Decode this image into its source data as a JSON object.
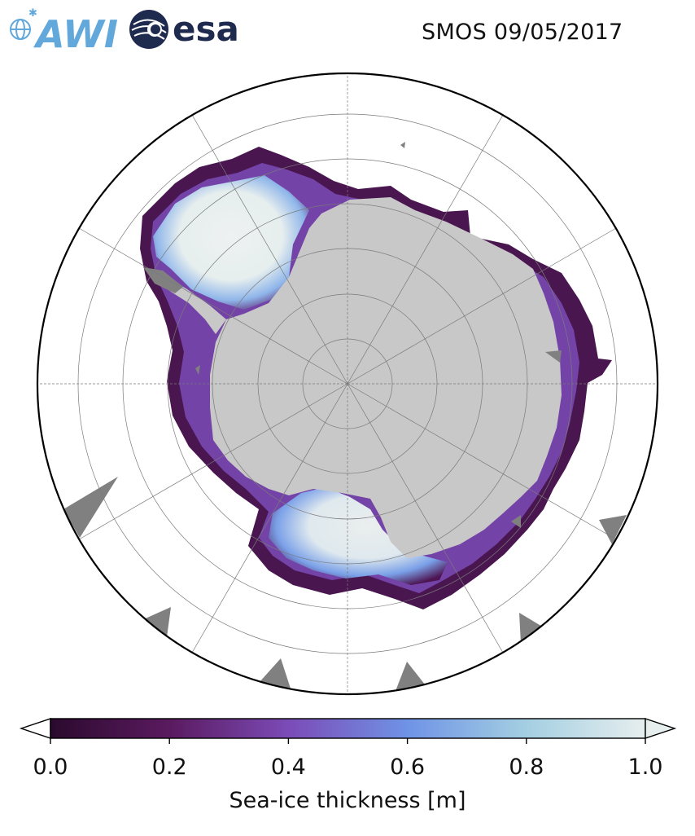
{
  "header": {
    "title": "SMOS 09/05/2017",
    "logos": [
      {
        "name": "awi-logo",
        "text": "AWI",
        "color": "#62a8db"
      },
      {
        "name": "esa-logo",
        "text": "esa",
        "color": "#1f2a4f"
      }
    ]
  },
  "map": {
    "projection": "south-polar-stereographic",
    "grid": true,
    "land_color": "#c8c8c8",
    "no_data_color": "#808080",
    "ocean_color": "#ffffff"
  },
  "colorbar": {
    "label": "Sea-ice thickness [m]",
    "min": 0.0,
    "max": 1.0,
    "extend": "both",
    "ticks": [
      "0.0",
      "0.2",
      "0.4",
      "0.6",
      "0.8",
      "1.0"
    ],
    "colormap": "dense",
    "stops": [
      "#2b0a2e",
      "#5a1a5f",
      "#7b4bb7",
      "#6f93e6",
      "#a4cfe2",
      "#e6eeee"
    ]
  }
}
